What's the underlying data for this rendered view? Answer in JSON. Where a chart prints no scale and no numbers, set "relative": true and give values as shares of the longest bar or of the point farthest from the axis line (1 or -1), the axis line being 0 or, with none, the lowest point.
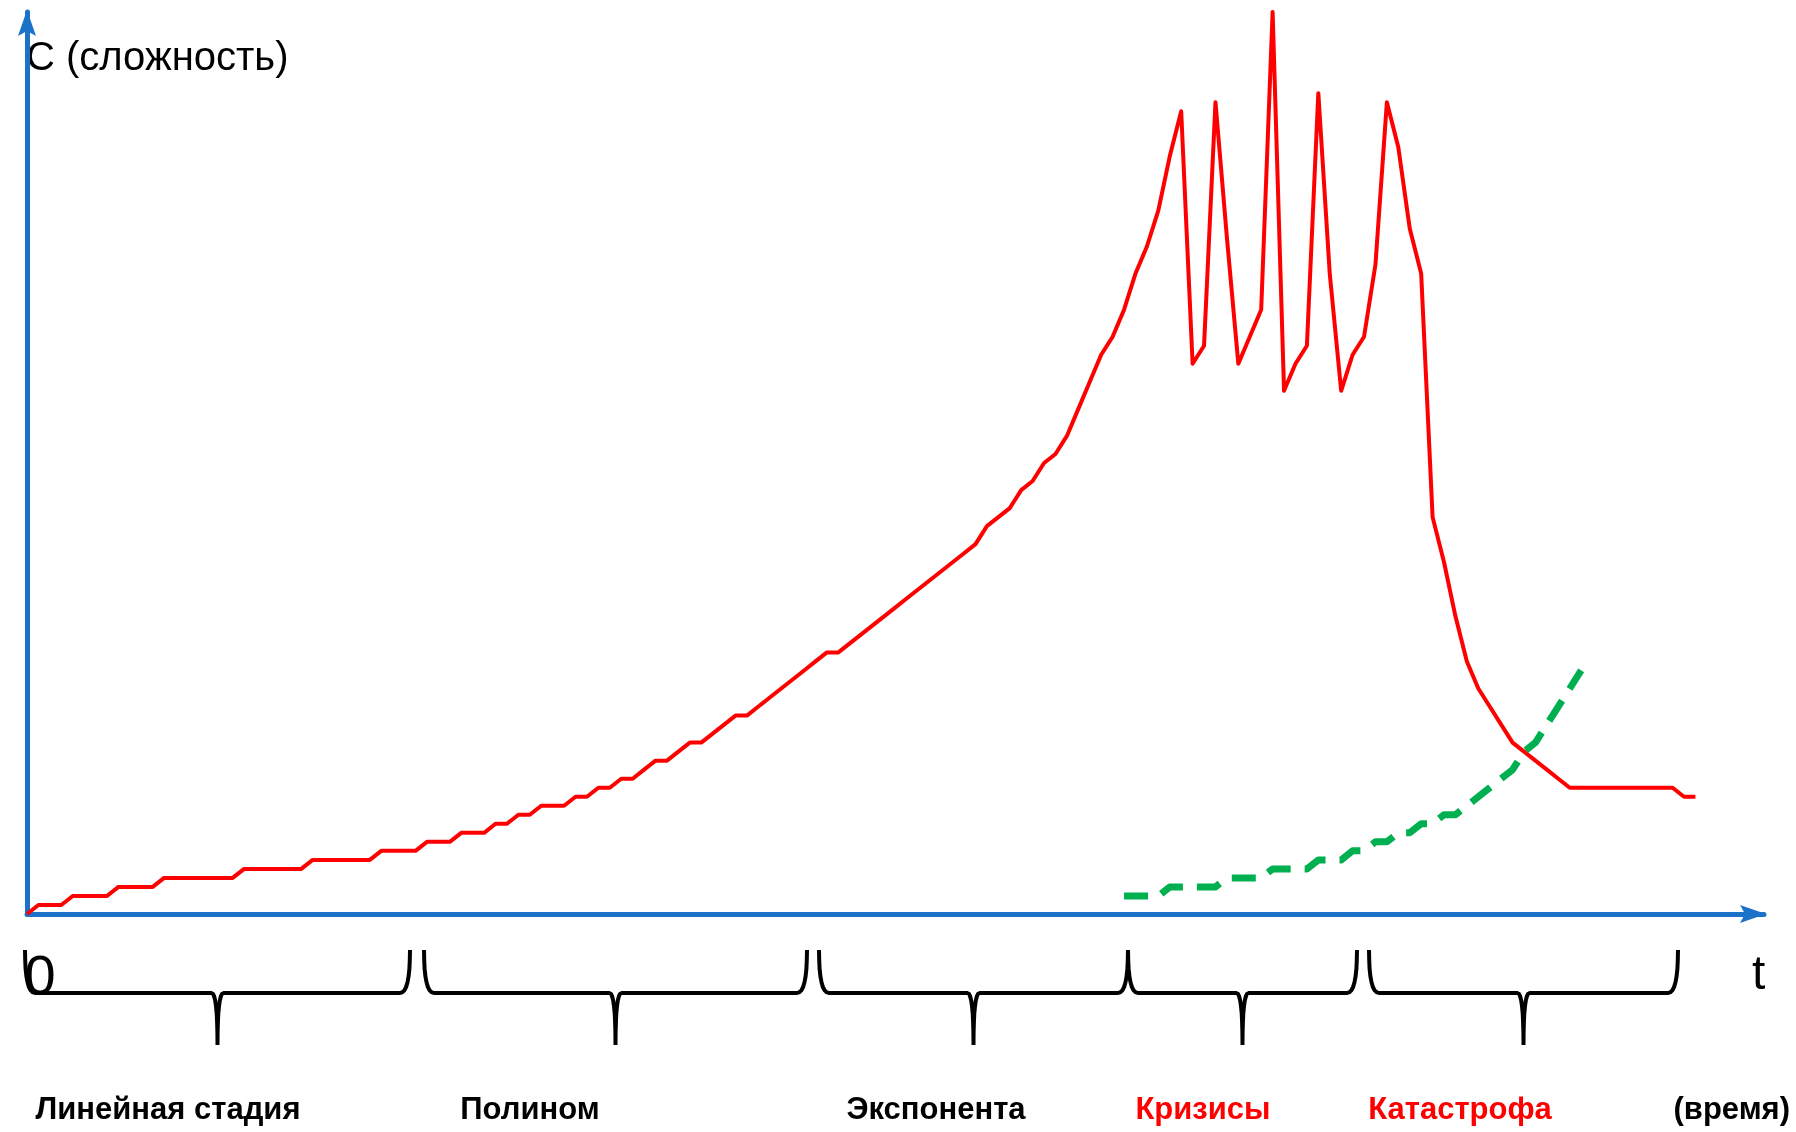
{
  "chart_data": {
    "type": "line",
    "relative": true,
    "ylabel": "C (сложность)",
    "xlabel": "t",
    "grid": false,
    "marker": "none",
    "annotations": [
      "0",
      "Линейная стадия",
      "Полином",
      "Экспонента",
      "Кризисы",
      "Катастрофа",
      "(время)"
    ],
    "categories": [
      null,
      null,
      null,
      null,
      null,
      null,
      null,
      null,
      null,
      null,
      null,
      null,
      null,
      null,
      null,
      null,
      null,
      null,
      null,
      null,
      null,
      null,
      null,
      null,
      null,
      null,
      null,
      null,
      null,
      null,
      null,
      null,
      null,
      null,
      null,
      null,
      null,
      null,
      null,
      null,
      null,
      null,
      null,
      null,
      null,
      null,
      null,
      null,
      null,
      null,
      null,
      null,
      null,
      null,
      null,
      null,
      null,
      null,
      null,
      null,
      null,
      null,
      null,
      null,
      null,
      null,
      null,
      null,
      null,
      null,
      null,
      null,
      null,
      null,
      null,
      null,
      null,
      null,
      null,
      null,
      null,
      null,
      null,
      null,
      null,
      null,
      null,
      null,
      null,
      null,
      null,
      null,
      null,
      null,
      null,
      null,
      null,
      null,
      null,
      null,
      null,
      null,
      null,
      null,
      null,
      null,
      null,
      null,
      null,
      null,
      null,
      null,
      null,
      null,
      null,
      null,
      null,
      null,
      null,
      null,
      null,
      null,
      null,
      null,
      null,
      null,
      null,
      null,
      null,
      null,
      null,
      null,
      null,
      null,
      null,
      null,
      null,
      null,
      null,
      null,
      null,
      null,
      null,
      null,
      null,
      null,
      null,
      null,
      null,
      null,
      null,
      null,
      null
    ],
    "series": [
      {
        "color": "#ff0000",
        "line_style": "solid",
        "values": [
          0,
          0.01,
          0.01,
          0.01,
          0.02,
          0.02,
          0.02,
          0.02,
          0.03,
          0.03,
          0.03,
          0.03,
          0.04,
          0.04,
          0.04,
          0.04,
          0.04,
          0.04,
          0.04,
          0.05,
          0.05,
          0.05,
          0.05,
          0.05,
          0.05,
          0.06,
          0.06,
          0.06,
          0.06,
          0.06,
          0.06,
          0.07,
          0.07,
          0.07,
          0.07,
          0.08,
          0.08,
          0.08,
          0.09,
          0.09,
          0.09,
          0.1,
          0.1,
          0.11,
          0.11,
          0.12,
          0.12,
          0.12,
          0.13,
          0.13,
          0.14,
          0.14,
          0.15,
          0.15,
          0.16,
          0.17,
          0.17,
          0.18,
          0.19,
          0.19,
          0.2,
          0.21,
          0.22,
          0.22,
          0.23,
          0.24,
          0.25,
          0.26,
          0.27,
          0.28,
          0.29,
          0.29,
          0.3,
          0.31,
          0.32,
          0.33,
          0.34,
          0.35,
          0.36,
          0.37,
          0.38,
          0.39,
          0.4,
          0.41,
          0.43,
          0.44,
          0.45,
          0.47,
          0.48,
          0.5,
          0.51,
          0.53,
          0.56,
          0.59,
          0.62,
          0.64,
          0.67,
          0.71,
          0.74,
          0.78,
          0.84,
          0.89,
          0.61,
          0.63,
          0.9,
          0.75,
          0.61,
          0.64,
          0.67,
          1,
          0.58,
          0.61,
          0.63,
          0.91,
          0.71,
          0.58,
          0.62,
          0.64,
          0.72,
          0.9,
          0.85,
          0.76,
          0.71,
          0.44,
          0.39,
          0.33,
          0.28,
          0.25,
          0.23,
          0.21,
          0.19,
          0.18,
          0.17,
          0.16,
          0.15,
          0.14,
          0.14,
          0.14,
          0.14,
          0.14,
          0.14,
          0.14,
          0.14,
          0.14,
          0.14,
          0.13,
          0.13,
          null,
          null,
          null,
          null,
          null,
          null
        ]
      },
      {
        "color": "#00b050",
        "line_style": "dashed",
        "values": [
          null,
          null,
          null,
          null,
          null,
          null,
          null,
          null,
          null,
          null,
          null,
          null,
          null,
          null,
          null,
          null,
          null,
          null,
          null,
          null,
          null,
          null,
          null,
          null,
          null,
          null,
          null,
          null,
          null,
          null,
          null,
          null,
          null,
          null,
          null,
          null,
          null,
          null,
          null,
          null,
          null,
          null,
          null,
          null,
          null,
          null,
          null,
          null,
          null,
          null,
          null,
          null,
          null,
          null,
          null,
          null,
          null,
          null,
          null,
          null,
          null,
          null,
          null,
          null,
          null,
          null,
          null,
          null,
          null,
          null,
          null,
          null,
          null,
          null,
          null,
          null,
          null,
          null,
          null,
          null,
          null,
          null,
          null,
          null,
          null,
          null,
          null,
          null,
          null,
          null,
          null,
          null,
          null,
          null,
          null,
          null,
          0.02,
          0.02,
          0.02,
          0.02,
          0.03,
          0.03,
          0.03,
          0.03,
          0.03,
          0.04,
          0.04,
          0.04,
          0.04,
          0.05,
          0.05,
          0.05,
          0.05,
          0.06,
          0.06,
          0.06,
          0.07,
          0.07,
          0.08,
          0.08,
          0.09,
          0.09,
          0.1,
          0.1,
          0.11,
          0.11,
          0.12,
          0.13,
          0.14,
          0.15,
          0.16,
          0.18,
          0.19,
          0.21,
          0.23,
          0.25,
          0.27,
          null,
          null,
          null,
          null,
          null,
          null,
          null,
          null,
          null,
          null,
          null,
          null,
          null,
          null,
          null,
          null
        ]
      }
    ]
  }
}
